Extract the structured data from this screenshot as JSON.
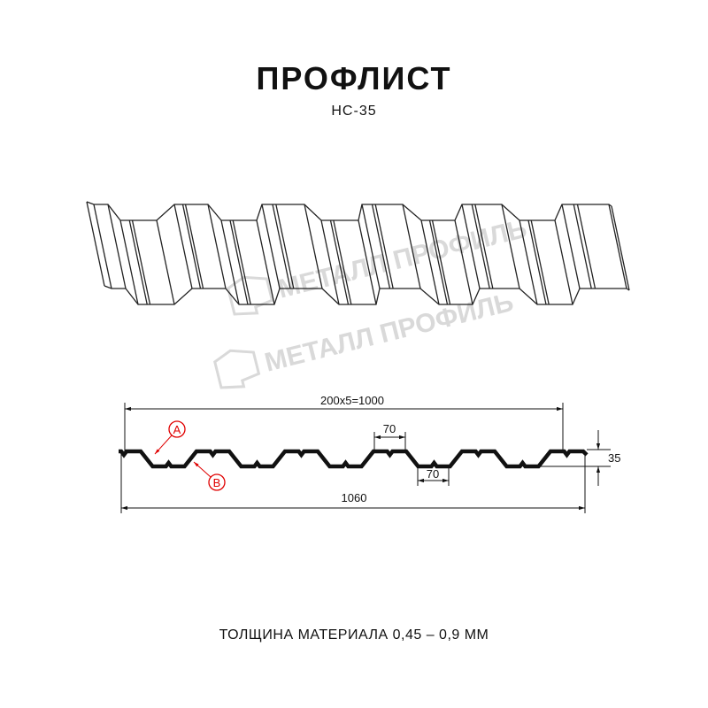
{
  "header": {
    "title": "ПРОФЛИСТ",
    "subtitle": "НС-35"
  },
  "watermark": {
    "text": "МЕТАЛЛ ПРОФИЛЬ",
    "color": "#d9d9d9"
  },
  "drawing": {
    "total_width_label": "200x5=1000",
    "full_width_label": "1060",
    "top_flat_label": "70",
    "bottom_flat_label": "70",
    "height_label": "35",
    "marker_a": "A",
    "marker_b": "B",
    "marker_color": "#e00000",
    "profile_color": "#111111"
  },
  "footer": {
    "thickness_label": "ТОЛЩИНА МАТЕРИАЛА 0,45 – 0,9 ММ"
  }
}
